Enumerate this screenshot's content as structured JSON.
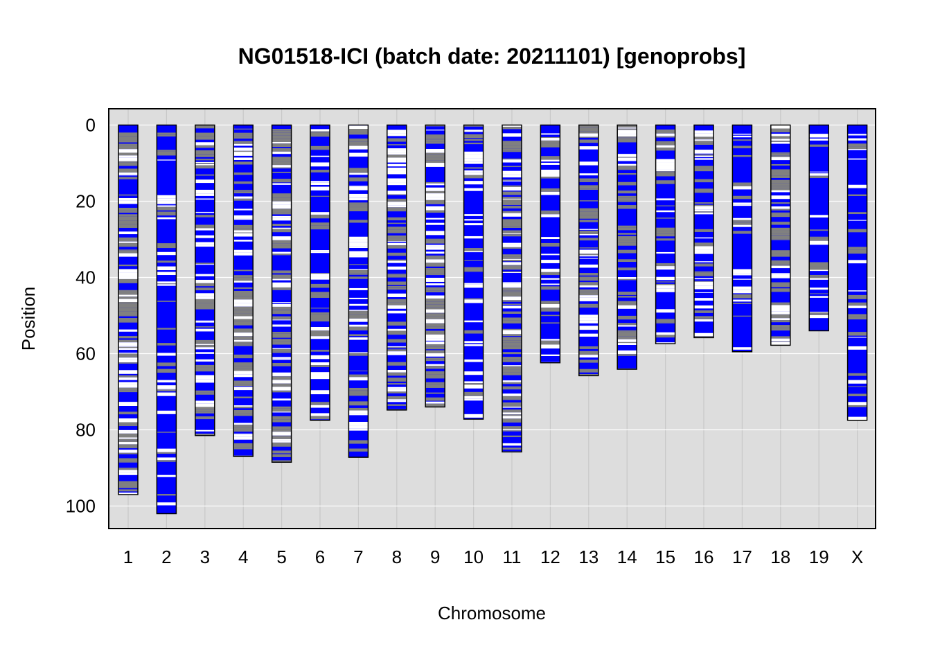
{
  "chart_data": {
    "type": "genotype-map",
    "title": "NG01518-ICI (batch date: 20211101) [genoprobs]",
    "xlabel": "Chromosome",
    "ylabel": "Position",
    "ylim": [
      0,
      105
    ],
    "y_reversed": true,
    "y_ticks": [
      0,
      20,
      40,
      60,
      80,
      100
    ],
    "y_tick_labels": [
      "0",
      "20",
      "40",
      "60",
      "80",
      "100"
    ],
    "grid": true,
    "colors": {
      "background": "#dddddd",
      "grid": "#ffffff",
      "vertical_grid": "#c8c8c8",
      "blue": "#0000ff",
      "gray": "#808080",
      "white": "#ffffff",
      "border": "#000000"
    },
    "categories": [
      "1",
      "2",
      "3",
      "4",
      "5",
      "6",
      "7",
      "8",
      "9",
      "10",
      "11",
      "12",
      "13",
      "14",
      "15",
      "16",
      "17",
      "18",
      "19",
      "X"
    ],
    "lengths": [
      97,
      102,
      81.5,
      87,
      88.5,
      77.5,
      87.2,
      74.8,
      74,
      77.2,
      85.8,
      62.4,
      65.8,
      64.1,
      57.4,
      55.8,
      59.5,
      57.8,
      54,
      77.5
    ],
    "composition": [
      {
        "chromosome": "1",
        "blue": 0.35,
        "gray": 0.45,
        "white": 0.2
      },
      {
        "chromosome": "2",
        "blue": 0.7,
        "gray": 0.15,
        "white": 0.15
      },
      {
        "chromosome": "3",
        "blue": 0.55,
        "gray": 0.25,
        "white": 0.2
      },
      {
        "chromosome": "4",
        "blue": 0.45,
        "gray": 0.35,
        "white": 0.2
      },
      {
        "chromosome": "5",
        "blue": 0.4,
        "gray": 0.4,
        "white": 0.2
      },
      {
        "chromosome": "6",
        "blue": 0.65,
        "gray": 0.15,
        "white": 0.2
      },
      {
        "chromosome": "7",
        "blue": 0.55,
        "gray": 0.25,
        "white": 0.2
      },
      {
        "chromosome": "8",
        "blue": 0.45,
        "gray": 0.35,
        "white": 0.2
      },
      {
        "chromosome": "9",
        "blue": 0.4,
        "gray": 0.4,
        "white": 0.2
      },
      {
        "chromosome": "10",
        "blue": 0.7,
        "gray": 0.1,
        "white": 0.2
      },
      {
        "chromosome": "11",
        "blue": 0.4,
        "gray": 0.4,
        "white": 0.2
      },
      {
        "chromosome": "12",
        "blue": 0.75,
        "gray": 0.1,
        "white": 0.15
      },
      {
        "chromosome": "13",
        "blue": 0.45,
        "gray": 0.35,
        "white": 0.2
      },
      {
        "chromosome": "14",
        "blue": 0.55,
        "gray": 0.3,
        "white": 0.15
      },
      {
        "chromosome": "15",
        "blue": 0.7,
        "gray": 0.15,
        "white": 0.15
      },
      {
        "chromosome": "16",
        "blue": 0.5,
        "gray": 0.3,
        "white": 0.2
      },
      {
        "chromosome": "17",
        "blue": 0.75,
        "gray": 0.1,
        "white": 0.15
      },
      {
        "chromosome": "18",
        "blue": 0.4,
        "gray": 0.4,
        "white": 0.2
      },
      {
        "chromosome": "19",
        "blue": 0.65,
        "gray": 0.2,
        "white": 0.15
      },
      {
        "chromosome": "X",
        "blue": 0.7,
        "gray": 0.15,
        "white": 0.15
      }
    ]
  }
}
